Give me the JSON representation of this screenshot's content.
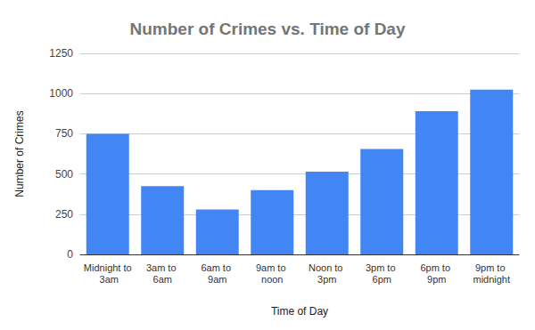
{
  "chart_data": {
    "type": "bar",
    "title": "Number of Crimes vs. Time of Day",
    "x_label": "Time of Day",
    "y_label": "Number of Crimes",
    "categories": [
      "Midnight to 3am",
      "3am to 6am",
      "6am to 9am",
      "9am to noon",
      "Noon to 3pm",
      "3pm to 6pm",
      "6pm to 9pm",
      "9pm to midnight"
    ],
    "values": [
      750,
      425,
      280,
      400,
      515,
      655,
      890,
      1025
    ],
    "color": "#4285f4",
    "ylim": [
      0,
      1250
    ],
    "yticks": [
      0,
      250,
      500,
      750,
      1000,
      1250
    ],
    "grid": true
  }
}
